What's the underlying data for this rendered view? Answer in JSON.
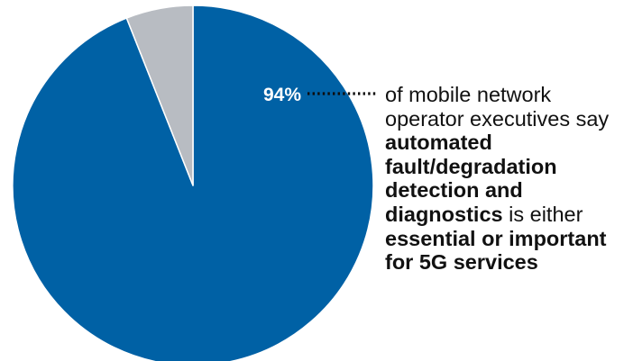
{
  "chart_data": {
    "type": "pie",
    "slices": [
      {
        "value": 94,
        "color": "#0061a5"
      },
      {
        "value": 6,
        "color": "#b8bcc2"
      }
    ],
    "data_labels": [
      "94%"
    ]
  },
  "callout": {
    "t1": "of mobile network operator executives say ",
    "b1": "automated fault/degradation detection and diagnostics",
    "t2": " is either ",
    "b2": "essential or important for 5G services"
  }
}
